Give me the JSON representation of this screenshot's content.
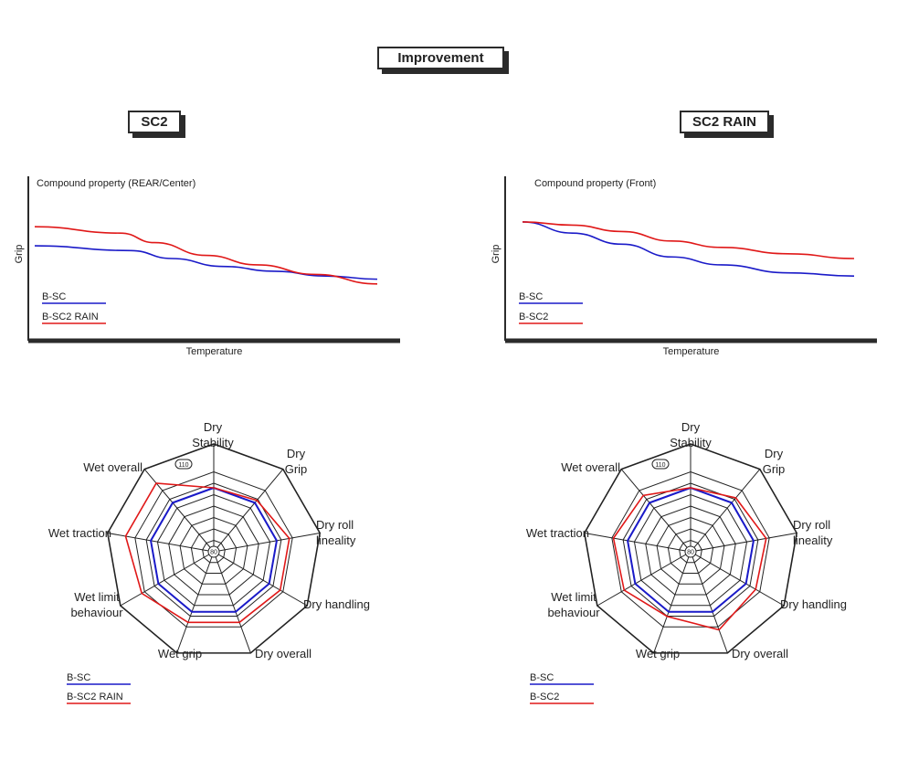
{
  "header": {
    "title": "Improvement"
  },
  "panels": [
    {
      "title": "SC2"
    },
    {
      "title": "SC2 RAIN"
    }
  ],
  "colors": {
    "blue": "#1a1ac8",
    "red": "#e01818",
    "axis": "#2b2b2b",
    "grid": "#222222"
  },
  "chart_data": [
    {
      "type": "line",
      "title": "Compound property (REAR/Center)",
      "xlabel": "Temperature",
      "ylabel": "Grip",
      "xlim": [
        0,
        1
      ],
      "ylim": [
        0,
        1
      ],
      "series": [
        {
          "name": "B-SC",
          "color": "#1a1ac8",
          "x": [
            0,
            0.28,
            0.4,
            0.55,
            0.7,
            0.85,
            1
          ],
          "y": [
            0.58,
            0.55,
            0.5,
            0.45,
            0.42,
            0.39,
            0.37
          ]
        },
        {
          "name": "B-SC2 RAIN",
          "color": "#e01818",
          "x": [
            0,
            0.25,
            0.35,
            0.5,
            0.65,
            0.82,
            1
          ],
          "y": [
            0.7,
            0.66,
            0.6,
            0.52,
            0.46,
            0.4,
            0.34
          ]
        }
      ],
      "legend": "bottom-left"
    },
    {
      "type": "line",
      "title": "Compound property (Front)",
      "xlabel": "Temperature",
      "ylabel": "Grip",
      "xlim": [
        0,
        1
      ],
      "ylim": [
        0,
        1
      ],
      "series": [
        {
          "name": "B-SC",
          "color": "#1a1ac8",
          "x": [
            0,
            0.15,
            0.3,
            0.45,
            0.6,
            0.8,
            1
          ],
          "y": [
            0.73,
            0.66,
            0.59,
            0.51,
            0.46,
            0.41,
            0.39
          ]
        },
        {
          "name": "B-SC2",
          "color": "#e01818",
          "x": [
            0,
            0.15,
            0.3,
            0.45,
            0.6,
            0.8,
            1
          ],
          "y": [
            0.73,
            0.71,
            0.67,
            0.61,
            0.57,
            0.53,
            0.5
          ]
        }
      ],
      "legend": "bottom-left"
    },
    {
      "type": "radar",
      "axes": [
        "Dry\nStability",
        "Dry\nGrip",
        "Dry roll\nlineality",
        "Dry handling",
        "Dry overall",
        "Wet grip",
        "Wet limit\nbehaviour",
        "Wet traction",
        "Wet overall"
      ],
      "rlim": [
        80,
        110
      ],
      "rlabels": [
        "80",
        "110"
      ],
      "series": [
        {
          "name": "B-SC",
          "color": "#1a1ac8",
          "values": [
            100,
            100,
            100,
            100,
            100,
            100,
            100,
            100,
            100
          ]
        },
        {
          "name": "B-SC2 RAIN",
          "color": "#e01818",
          "values": [
            100,
            101,
            104,
            104,
            103.5,
            103.5,
            106,
            108,
            108
          ]
        }
      ],
      "legend": "bottom-left"
    },
    {
      "type": "radar",
      "axes": [
        "Dry\nStability",
        "Dry\nGrip",
        "Dry roll\nlineality",
        "Dry handling",
        "Dry overall",
        "Wet grip",
        "Wet limit\nbehaviour",
        "Wet traction",
        "Wet overall"
      ],
      "rlim": [
        80,
        110
      ],
      "rlabels": [
        "80",
        "110"
      ],
      "series": [
        {
          "name": "B-SC",
          "color": "#1a1ac8",
          "values": [
            100,
            100,
            100,
            100,
            100,
            100,
            100,
            100,
            100
          ]
        },
        {
          "name": "B-SC2",
          "color": "#e01818",
          "values": [
            100,
            102,
            104,
            103.5,
            106,
            101.5,
            104,
            104.5,
            103
          ]
        }
      ],
      "legend": "bottom-left"
    }
  ]
}
